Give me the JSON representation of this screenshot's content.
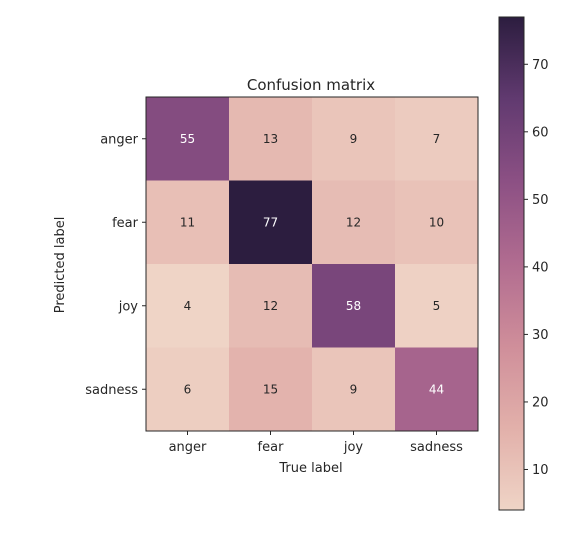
{
  "chart_data": {
    "type": "heatmap",
    "title": "Confusion matrix",
    "xlabel": "True label",
    "ylabel": "Predicted label",
    "x_categories": [
      "anger",
      "fear",
      "joy",
      "sadness"
    ],
    "y_categories": [
      "anger",
      "fear",
      "joy",
      "sadness"
    ],
    "values": [
      [
        55,
        13,
        9,
        7
      ],
      [
        11,
        77,
        12,
        10
      ],
      [
        4,
        12,
        58,
        5
      ],
      [
        6,
        15,
        9,
        44
      ]
    ],
    "colorbar": {
      "min": 4,
      "max": 77,
      "ticks": [
        10,
        20,
        30,
        40,
        50,
        60,
        70
      ],
      "tick_labels": [
        "10",
        "20",
        "30",
        "40",
        "50",
        "60",
        "70"
      ]
    },
    "colormap": [
      "#efd4c6",
      "#e2b0aa",
      "#cf8e9a",
      "#b16c90",
      "#8c5084",
      "#613a70",
      "#2c1d3f"
    ],
    "text_color_dark": "#262626",
    "text_color_light": "#ffffff"
  }
}
